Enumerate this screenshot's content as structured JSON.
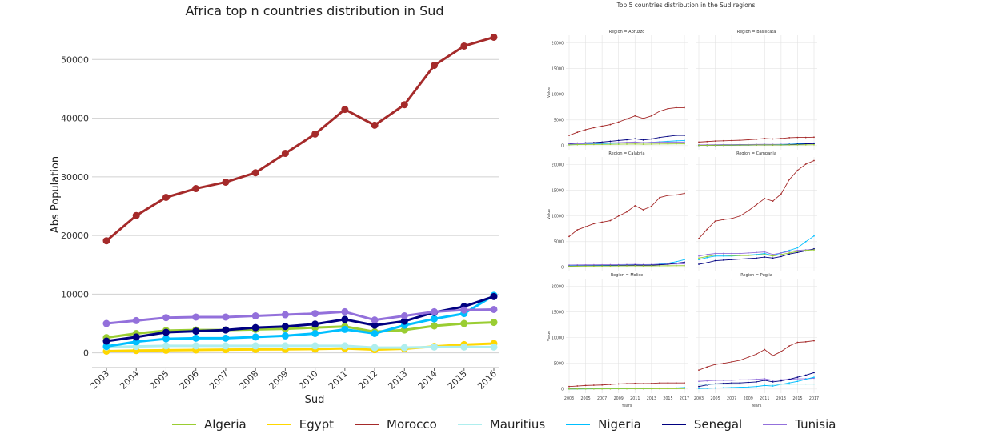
{
  "colors": {
    "Algeria": "#9acd32",
    "Egypt": "#ffd700",
    "Morocco": "#a52a2a",
    "Mauritius": "#afeeee",
    "Nigeria": "#00bfff",
    "Senegal": "#000080",
    "Tunisia": "#9370db"
  },
  "legend": {
    "items": [
      "Algeria",
      "Egypt",
      "Morocco",
      "Mauritius",
      "Nigeria",
      "Senegal",
      "Tunisia"
    ]
  },
  "chart_data": [
    {
      "type": "line",
      "title": "Africa top n countries distribution in Sud",
      "xlabel": "Sud",
      "ylabel": "Abs Population",
      "x": [
        2003,
        2004,
        2005,
        2006,
        2007,
        2008,
        2009,
        2010,
        2011,
        2012,
        2013,
        2014,
        2015,
        2016
      ],
      "x_tick_labels": [
        "2003",
        "2004",
        "2005",
        "2006",
        "2007",
        "2008",
        "2009",
        "2010",
        "2011",
        "2012",
        "2013",
        "2014",
        "2015",
        "2016"
      ],
      "y_ticks": [
        0,
        10000,
        20000,
        30000,
        40000,
        50000
      ],
      "y_tick_labels": [
        "0",
        "10000",
        "20000",
        "30000",
        "40000",
        "50000"
      ],
      "ylim": [
        -2500,
        55500
      ],
      "grid": "horizontal",
      "legend_position": "bottom",
      "series": [
        {
          "name": "Algeria",
          "values": [
            2600,
            3300,
            3800,
            3900,
            3900,
            4000,
            4100,
            4300,
            4500,
            3600,
            3900,
            4600,
            5000,
            5200
          ]
        },
        {
          "name": "Egypt",
          "values": [
            300,
            400,
            450,
            500,
            550,
            580,
            600,
            650,
            750,
            550,
            700,
            1100,
            1400,
            1600
          ]
        },
        {
          "name": "Morocco",
          "values": [
            19100,
            23400,
            26500,
            28000,
            29100,
            30700,
            34000,
            37300,
            41500,
            38800,
            42300,
            49000,
            52300,
            53800
          ]
        },
        {
          "name": "Mauritius",
          "values": [
            1000,
            1100,
            1200,
            1200,
            1200,
            1200,
            1200,
            1200,
            1200,
            900,
            900,
            1000,
            1000,
            1000
          ]
        },
        {
          "name": "Nigeria",
          "values": [
            1100,
            1900,
            2400,
            2500,
            2500,
            2700,
            2900,
            3300,
            4000,
            3300,
            4700,
            5800,
            6700,
            9800
          ]
        },
        {
          "name": "Senegal",
          "values": [
            2000,
            2700,
            3500,
            3700,
            3900,
            4300,
            4500,
            4900,
            5700,
            4700,
            5400,
            6900,
            7900,
            9600
          ]
        },
        {
          "name": "Tunisia",
          "values": [
            5000,
            5500,
            6000,
            6100,
            6100,
            6300,
            6500,
            6700,
            7000,
            5600,
            6300,
            7000,
            7300,
            7400
          ]
        }
      ]
    },
    {
      "type": "line",
      "title": "Top 5 countries distribution in the Sud regions",
      "xlabel": "Years",
      "ylabel": "Value",
      "x": [
        2003,
        2004,
        2005,
        2006,
        2007,
        2008,
        2009,
        2010,
        2011,
        2012,
        2013,
        2014,
        2015,
        2016,
        2017
      ],
      "x_tick_labels": [
        "2003",
        "2005",
        "2007",
        "2009",
        "2011",
        "2013",
        "2015",
        "2017"
      ],
      "y_ticks": [
        0,
        5000,
        10000,
        15000,
        20000
      ],
      "y_tick_labels": [
        "0",
        "5000",
        "10000",
        "15000",
        "20000"
      ],
      "ylim": [
        -800,
        21500
      ],
      "facets": [
        {
          "title": "Region = Abruzzo",
          "series": [
            {
              "name": "Morocco",
              "values": [
                2000,
                2600,
                3100,
                3500,
                3800,
                4100,
                4600,
                5200,
                5800,
                5300,
                5800,
                6700,
                7200,
                7400,
                7400
              ]
            },
            {
              "name": "Senegal",
              "values": [
                400,
                500,
                550,
                600,
                700,
                850,
                1000,
                1150,
                1350,
                1100,
                1300,
                1600,
                1800,
                2000,
                2000
              ]
            },
            {
              "name": "Nigeria",
              "values": [
                200,
                250,
                300,
                350,
                400,
                450,
                500,
                550,
                650,
                550,
                650,
                750,
                850,
                950,
                1000
              ]
            },
            {
              "name": "Tunisia",
              "values": [
                300,
                350,
                400,
                450,
                500,
                550,
                600,
                650,
                700,
                600,
                650,
                700,
                700,
                700,
                700
              ]
            },
            {
              "name": "Algeria",
              "values": [
                150,
                200,
                220,
                240,
                250,
                260,
                280,
                300,
                320,
                280,
                300,
                320,
                330,
                340,
                350
              ]
            }
          ]
        },
        {
          "title": "Region = Basilicata",
          "series": [
            {
              "name": "Morocco",
              "values": [
                700,
                800,
                900,
                950,
                1000,
                1050,
                1150,
                1250,
                1400,
                1300,
                1400,
                1550,
                1600,
                1600,
                1650
              ]
            },
            {
              "name": "Tunisia",
              "values": [
                150,
                170,
                190,
                200,
                210,
                220,
                230,
                250,
                270,
                250,
                270,
                300,
                330,
                360,
                400
              ]
            },
            {
              "name": "Nigeria",
              "values": [
                50,
                60,
                70,
                80,
                90,
                100,
                110,
                130,
                160,
                150,
                200,
                260,
                350,
                450,
                500
              ]
            },
            {
              "name": "Senegal",
              "values": [
                50,
                60,
                70,
                80,
                90,
                100,
                110,
                120,
                140,
                130,
                150,
                200,
                280,
                350,
                400
              ]
            },
            {
              "name": "Algeria",
              "values": [
                60,
                70,
                80,
                90,
                100,
                110,
                120,
                130,
                140,
                130,
                140,
                150,
                160,
                170,
                180
              ]
            }
          ]
        },
        {
          "title": "Region = Calabria",
          "series": [
            {
              "name": "Morocco",
              "values": [
                6000,
                7300,
                7900,
                8500,
                8800,
                9100,
                10000,
                10800,
                12000,
                11200,
                11900,
                13600,
                14000,
                14100,
                14400
              ]
            },
            {
              "name": "Nigeria",
              "values": [
                300,
                320,
                340,
                360,
                380,
                400,
                420,
                450,
                500,
                450,
                500,
                650,
                800,
                1100,
                1500
              ]
            },
            {
              "name": "Tunisia",
              "values": [
                450,
                470,
                490,
                500,
                510,
                520,
                530,
                550,
                580,
                540,
                560,
                600,
                630,
                650,
                680
              ]
            },
            {
              "name": "Senegal",
              "values": [
                250,
                270,
                290,
                300,
                320,
                340,
                360,
                380,
                420,
                390,
                420,
                500,
                600,
                800,
                1000
              ]
            },
            {
              "name": "Algeria",
              "values": [
                200,
                220,
                240,
                250,
                260,
                270,
                280,
                290,
                300,
                280,
                290,
                300,
                310,
                320,
                330
              ]
            }
          ]
        },
        {
          "title": "Region = Campania",
          "series": [
            {
              "name": "Morocco",
              "values": [
                5600,
                7400,
                9000,
                9300,
                9500,
                10000,
                11000,
                12200,
                13400,
                12900,
                14300,
                17100,
                18900,
                20100,
                20800
              ]
            },
            {
              "name": "Nigeria",
              "values": [
                1500,
                1900,
                2200,
                2200,
                2200,
                2300,
                2400,
                2500,
                2700,
                2300,
                2800,
                3300,
                3800,
                5000,
                6100
              ]
            },
            {
              "name": "Tunisia",
              "values": [
                2200,
                2500,
                2700,
                2700,
                2700,
                2700,
                2800,
                2900,
                3000,
                2500,
                2800,
                3100,
                3300,
                3400,
                3500
              ]
            },
            {
              "name": "Senegal",
              "values": [
                600,
                900,
                1300,
                1400,
                1500,
                1600,
                1700,
                1800,
                2000,
                1800,
                2100,
                2600,
                2900,
                3200,
                3600
              ]
            },
            {
              "name": "Algeria",
              "values": [
                1800,
                2100,
                2400,
                2400,
                2300,
                2300,
                2300,
                2400,
                2500,
                2200,
                2500,
                2800,
                3100,
                3300,
                3400
              ]
            }
          ]
        },
        {
          "title": "Region = Molise",
          "series": [
            {
              "name": "Morocco",
              "values": [
                500,
                600,
                700,
                750,
                800,
                900,
                1000,
                1050,
                1100,
                1050,
                1100,
                1200,
                1200,
                1200,
                1200
              ]
            },
            {
              "name": "Tunisia",
              "values": [
                100,
                110,
                120,
                130,
                140,
                150,
                160,
                170,
                180,
                170,
                180,
                190,
                200,
                210,
                220
              ]
            },
            {
              "name": "Senegal",
              "values": [
                30,
                40,
                50,
                60,
                70,
                80,
                90,
                100,
                110,
                100,
                110,
                130,
                150,
                180,
                200
              ]
            },
            {
              "name": "Nigeria",
              "values": [
                20,
                30,
                40,
                50,
                60,
                70,
                80,
                90,
                100,
                90,
                110,
                140,
                180,
                230,
                300
              ]
            },
            {
              "name": "Algeria",
              "values": [
                20,
                25,
                30,
                35,
                40,
                45,
                50,
                55,
                60,
                55,
                60,
                65,
                70,
                75,
                80
              ]
            }
          ]
        },
        {
          "title": "Region = Puglia",
          "series": [
            {
              "name": "Morocco",
              "values": [
                3700,
                4300,
                4800,
                5000,
                5300,
                5600,
                6200,
                6800,
                7700,
                6500,
                7300,
                8400,
                9100,
                9200,
                9400
              ]
            },
            {
              "name": "Tunisia",
              "values": [
                1500,
                1600,
                1700,
                1700,
                1700,
                1800,
                1800,
                1900,
                2000,
                1700,
                1800,
                1900,
                2000,
                2000,
                2100
              ]
            },
            {
              "name": "Senegal",
              "values": [
                500,
                800,
                1000,
                1100,
                1200,
                1200,
                1300,
                1400,
                1700,
                1400,
                1600,
                1900,
                2300,
                2700,
                3200
              ]
            },
            {
              "name": "Nigeria",
              "values": [
                100,
                150,
                200,
                250,
                300,
                350,
                400,
                500,
                700,
                600,
                900,
                1200,
                1500,
                1900,
                2300
              ]
            },
            {
              "name": "Mauritius",
              "values": [
                900,
                900,
                950,
                950,
                950,
                950,
                1000,
                1000,
                1000,
                900,
                900,
                900,
                950,
                950,
                950
              ]
            }
          ]
        }
      ]
    }
  ]
}
